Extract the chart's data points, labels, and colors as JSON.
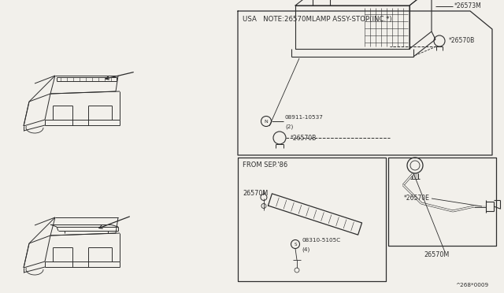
{
  "bg_color": "#f2f0eb",
  "line_color": "#2d2d2d",
  "upper_box_note": "USA   NOTE:26570MLAMP ASSY-STOP(INC.*)",
  "lower_box_label": "FROM SEP.'86",
  "ref_number": "^268*0009",
  "p_26573M": "*26573M",
  "p_26570B": "*26570B",
  "p_08911": "08911-10537",
  "p_08911_qty": "(2)",
  "p_26570E": "*26570E",
  "p_26570M": "26570M",
  "p_08310": "08310-5105C",
  "p_08310_qty": "(4)",
  "p_N": "N",
  "p_S": "S"
}
